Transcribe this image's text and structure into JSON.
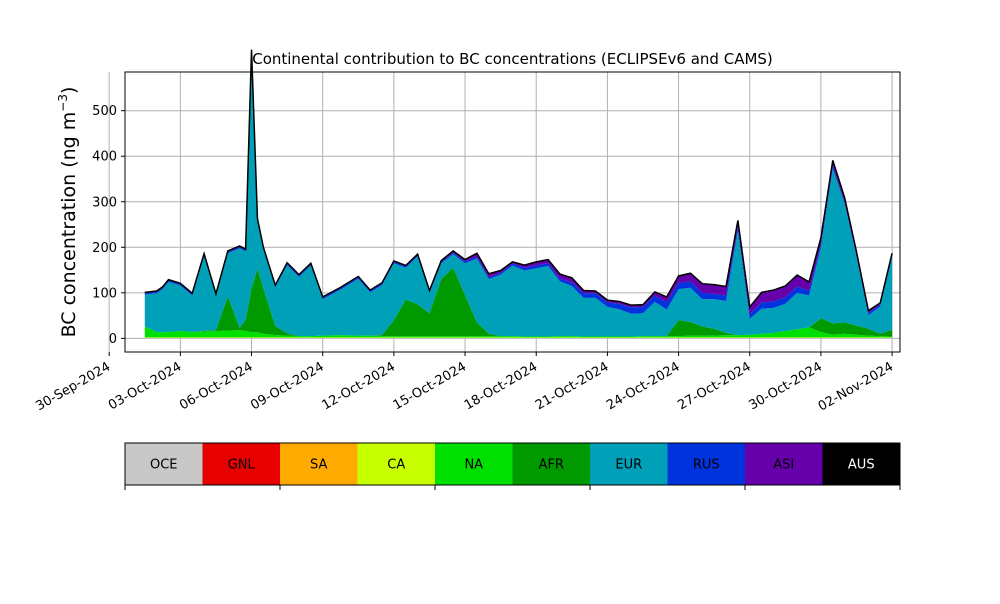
{
  "chart_data": [
    {
      "type": "area",
      "title": "Continental contribution to BC concentrations (ECLIPSEv6 and CAMS)",
      "ylabel": "BC concentration (ng m",
      "ylabel_sup": "−3",
      "ylabel_close": ")",
      "xlabel": "",
      "stacked": true,
      "grid": true,
      "xlim": [
        "2024-09-30T16:00",
        "2024-11-02T08:00"
      ],
      "ylim": [
        -30,
        585
      ],
      "yticks": [
        0,
        100,
        200,
        300,
        400,
        500
      ],
      "xtick_labels": [
        "30-Sep-2024",
        "03-Oct-2024",
        "06-Oct-2024",
        "09-Oct-2024",
        "12-Oct-2024",
        "15-Oct-2024",
        "18-Oct-2024",
        "21-Oct-2024",
        "24-Oct-2024",
        "27-Oct-2024",
        "30-Oct-2024",
        "02-Nov-2024"
      ],
      "xtick_dates": [
        "2024-09-30",
        "2024-10-03",
        "2024-10-06",
        "2024-10-09",
        "2024-10-12",
        "2024-10-15",
        "2024-10-18",
        "2024-10-21",
        "2024-10-24",
        "2024-10-27",
        "2024-10-30",
        "2024-11-02"
      ],
      "x": [
        "2024-10-01T12:00",
        "2024-10-02T00:00",
        "2024-10-02T06:00",
        "2024-10-02T12:00",
        "2024-10-03T00:00",
        "2024-10-03T12:00",
        "2024-10-04T00:00",
        "2024-10-04T12:00",
        "2024-10-05T00:00",
        "2024-10-05T12:00",
        "2024-10-05T18:00",
        "2024-10-06T00:00",
        "2024-10-06T06:00",
        "2024-10-06T12:00",
        "2024-10-07T00:00",
        "2024-10-07T12:00",
        "2024-10-08T00:00",
        "2024-10-08T12:00",
        "2024-10-09T00:00",
        "2024-10-09T18:00",
        "2024-10-10T12:00",
        "2024-10-11T00:00",
        "2024-10-11T12:00",
        "2024-10-12T00:00",
        "2024-10-12T12:00",
        "2024-10-13T00:00",
        "2024-10-13T12:00",
        "2024-10-14T00:00",
        "2024-10-14T12:00",
        "2024-10-15T00:00",
        "2024-10-15T12:00",
        "2024-10-16T00:00",
        "2024-10-16T12:00",
        "2024-10-17T00:00",
        "2024-10-17T12:00",
        "2024-10-18T00:00",
        "2024-10-18T12:00",
        "2024-10-19T00:00",
        "2024-10-19T12:00",
        "2024-10-20T00:00",
        "2024-10-20T12:00",
        "2024-10-21T00:00",
        "2024-10-21T12:00",
        "2024-10-22T00:00",
        "2024-10-22T12:00",
        "2024-10-23T00:00",
        "2024-10-23T12:00",
        "2024-10-24T00:00",
        "2024-10-24T12:00",
        "2024-10-25T00:00",
        "2024-10-25T12:00",
        "2024-10-26T00:00",
        "2024-10-26T12:00",
        "2024-10-27T00:00",
        "2024-10-27T12:00",
        "2024-10-28T00:00",
        "2024-10-28T12:00",
        "2024-10-29T00:00",
        "2024-10-29T12:00",
        "2024-10-30T00:00",
        "2024-10-30T12:00",
        "2024-10-31T00:00",
        "2024-10-31T12:00",
        "2024-11-01T00:00",
        "2024-11-01T12:00",
        "2024-11-02T00:00"
      ],
      "series": [
        {
          "name": "OCE",
          "color": "#c8c8c8",
          "values": [
            1,
            1,
            1,
            1,
            1,
            1,
            1,
            1,
            1,
            1,
            1,
            1,
            1,
            1,
            1,
            1,
            1,
            1,
            1,
            1,
            1,
            1,
            1,
            1,
            1,
            1,
            1,
            1,
            1,
            1,
            1,
            1,
            1,
            1,
            1,
            1,
            1,
            1,
            1,
            1,
            1,
            1,
            1,
            1,
            1,
            1,
            1,
            1,
            1,
            1,
            1,
            1,
            1,
            1,
            1,
            1,
            1,
            1,
            1,
            1,
            1,
            1,
            1,
            1,
            1,
            1
          ]
        },
        {
          "name": "GNL",
          "color": "#e60000",
          "values": [
            0,
            0,
            0,
            0,
            0,
            0,
            0,
            0,
            0,
            0,
            0,
            0,
            0,
            0,
            0,
            0,
            0,
            0,
            0,
            0,
            0,
            0,
            0,
            0,
            0,
            0,
            0,
            0,
            0,
            0,
            0,
            0,
            0,
            0,
            0,
            0,
            0,
            0,
            0,
            0,
            0,
            0,
            0,
            0,
            0,
            0,
            0,
            0,
            0,
            0,
            0,
            0,
            0,
            0,
            0,
            0,
            0,
            0,
            0,
            0,
            0,
            0,
            0,
            0,
            0,
            0
          ]
        },
        {
          "name": "SA",
          "color": "#ffaa00",
          "values": [
            0,
            0,
            0,
            0,
            0,
            0,
            0,
            0,
            0,
            0,
            0,
            0,
            0,
            0,
            0,
            0,
            0,
            0,
            0,
            0,
            0,
            0,
            0,
            0,
            0,
            0,
            0,
            0,
            0,
            0,
            0,
            0,
            0,
            0,
            0,
            0,
            0,
            0,
            0,
            0,
            0,
            0,
            0,
            0,
            0,
            0,
            0,
            0,
            0,
            0,
            0,
            0,
            0,
            0,
            0,
            0,
            0,
            0,
            0,
            0,
            0,
            0,
            0,
            0,
            0,
            0
          ]
        },
        {
          "name": "CA",
          "color": "#c8ff00",
          "values": [
            1,
            1,
            1,
            1,
            1,
            1,
            1,
            1,
            1,
            1,
            1,
            1,
            1,
            1,
            1,
            1,
            1,
            1,
            1,
            1,
            1,
            1,
            1,
            1,
            1,
            1,
            1,
            1,
            1,
            1,
            1,
            1,
            1,
            1,
            1,
            1,
            1,
            1,
            1,
            1,
            1,
            1,
            1,
            1,
            1,
            1,
            1,
            1,
            1,
            1,
            1,
            1,
            1,
            1,
            1,
            1,
            1,
            1,
            1,
            1,
            1,
            1,
            1,
            1,
            1,
            1
          ]
        },
        {
          "name": "NA",
          "color": "#00e000",
          "values": [
            24,
            12,
            11,
            12,
            14,
            12,
            13,
            14,
            15,
            16,
            14,
            12,
            11,
            8,
            5,
            4,
            3,
            3,
            4,
            5,
            4,
            4,
            3,
            3,
            3,
            3,
            3,
            3,
            3,
            3,
            3,
            3,
            3,
            3,
            2,
            2,
            2,
            3,
            3,
            2,
            2,
            2,
            2,
            2,
            3,
            3,
            3,
            3,
            4,
            4,
            4,
            5,
            5,
            6,
            8,
            10,
            14,
            18,
            22,
            12,
            6,
            8,
            6,
            4,
            3,
            2
          ]
        },
        {
          "name": "AFR",
          "color": "#009900",
          "values": [
            0,
            0,
            0,
            0,
            0,
            0,
            1,
            2,
            75,
            5,
            25,
            95,
            140,
            100,
            20,
            5,
            0,
            0,
            0,
            0,
            0,
            0,
            2,
            35,
            80,
            70,
            50,
            125,
            150,
            90,
            30,
            5,
            0,
            0,
            0,
            0,
            0,
            0,
            0,
            0,
            0,
            0,
            0,
            0,
            0,
            0,
            0,
            35,
            30,
            20,
            15,
            5,
            0,
            0,
            0,
            0,
            0,
            0,
            0,
            30,
            25,
            25,
            20,
            15,
            5,
            15
          ]
        },
        {
          "name": "EUR",
          "color": "#00a0b8",
          "values": [
            70,
            85,
            95,
            110,
            100,
            80,
            165,
            75,
            95,
            175,
            150,
            520,
            105,
            85,
            85,
            150,
            130,
            155,
            80,
            100,
            125,
            95,
            110,
            125,
            70,
            105,
            45,
            35,
            30,
            70,
            140,
            120,
            135,
            155,
            145,
            150,
            155,
            120,
            110,
            85,
            85,
            65,
            60,
            50,
            50,
            75,
            58,
            68,
            75,
            60,
            65,
            70,
            230,
            35,
            55,
            55,
            60,
            80,
            70,
            155,
            340,
            260,
            150,
            30,
            60,
            160
          ]
        },
        {
          "name": "RUS",
          "color": "#0033dd",
          "values": [
            3,
            3,
            3,
            3,
            3,
            3,
            3,
            3,
            3,
            3,
            3,
            3,
            3,
            3,
            3,
            3,
            3,
            3,
            3,
            3,
            3,
            3,
            3,
            3,
            3,
            3,
            3,
            3,
            3,
            4,
            4,
            4,
            4,
            4,
            6,
            6,
            6,
            6,
            8,
            10,
            10,
            10,
            12,
            14,
            14,
            14,
            16,
            14,
            14,
            14,
            12,
            12,
            8,
            10,
            14,
            14,
            14,
            14,
            10,
            8,
            6,
            4,
            4,
            4,
            4,
            4
          ]
        },
        {
          "name": "ASI",
          "color": "#6600aa",
          "values": [
            2,
            2,
            2,
            2,
            2,
            2,
            2,
            2,
            2,
            2,
            2,
            2,
            2,
            2,
            2,
            2,
            2,
            2,
            2,
            2,
            2,
            2,
            2,
            2,
            2,
            2,
            2,
            3,
            4,
            4,
            8,
            8,
            5,
            4,
            6,
            8,
            8,
            10,
            10,
            6,
            5,
            5,
            5,
            5,
            5,
            8,
            12,
            15,
            18,
            20,
            20,
            20,
            14,
            16,
            22,
            25,
            25,
            25,
            20,
            14,
            12,
            10,
            8,
            6,
            4,
            4
          ]
        },
        {
          "name": "AUS",
          "color": "#000000",
          "values": [
            0,
            0,
            0,
            0,
            0,
            0,
            0,
            0,
            0,
            0,
            0,
            0,
            0,
            0,
            0,
            0,
            0,
            0,
            0,
            0,
            0,
            0,
            0,
            0,
            0,
            0,
            0,
            0,
            0,
            0,
            0,
            0,
            0,
            0,
            0,
            0,
            0,
            0,
            0,
            0,
            0,
            0,
            0,
            0,
            0,
            0,
            0,
            0,
            0,
            0,
            0,
            0,
            0,
            0,
            0,
            0,
            0,
            0,
            0,
            0,
            0,
            0,
            0,
            0,
            0,
            0
          ]
        }
      ]
    },
    {
      "type": "colorbar",
      "legend_placement": "below",
      "items": [
        {
          "label": "OCE",
          "color": "#c8c8c8",
          "text_color": "#000000"
        },
        {
          "label": "GNL",
          "color": "#e60000",
          "text_color": "#000000"
        },
        {
          "label": "SA",
          "color": "#ffaa00",
          "text_color": "#000000"
        },
        {
          "label": "CA",
          "color": "#c8ff00",
          "text_color": "#000000"
        },
        {
          "label": "NA",
          "color": "#00e000",
          "text_color": "#000000"
        },
        {
          "label": "AFR",
          "color": "#009900",
          "text_color": "#000000"
        },
        {
          "label": "EUR",
          "color": "#00a0b8",
          "text_color": "#000000"
        },
        {
          "label": "RUS",
          "color": "#0033dd",
          "text_color": "#000000"
        },
        {
          "label": "ASI",
          "color": "#6600aa",
          "text_color": "#000000"
        },
        {
          "label": "AUS",
          "color": "#000000",
          "text_color": "#ffffff"
        }
      ]
    }
  ]
}
